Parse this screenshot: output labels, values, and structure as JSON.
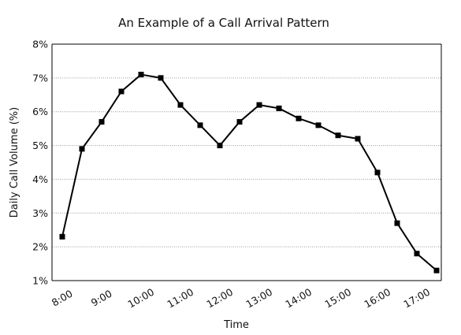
{
  "chart_data": {
    "type": "line",
    "title": "An Example of a Call Arrival Pattern",
    "xlabel": "Time",
    "ylabel": "Daily Call Volume (%)",
    "x_ticks": [
      "8:00",
      "9:00",
      "10:00",
      "11:00",
      "12:00",
      "13:00",
      "14:00",
      "15:00",
      "16:00",
      "17:00"
    ],
    "y_ticks": [
      "1%",
      "2%",
      "3%",
      "4%",
      "5%",
      "6%",
      "7%",
      "8%"
    ],
    "ylim": [
      1,
      8
    ],
    "grid": true,
    "series": [
      {
        "x": [
          "8:00",
          "8:30",
          "9:00",
          "9:30",
          "10:00",
          "10:30",
          "11:00",
          "11:30",
          "12:00",
          "12:30",
          "13:00",
          "13:30",
          "14:00",
          "14:30",
          "15:00",
          "15:30",
          "16:00",
          "16:30",
          "17:00",
          "17:30"
        ],
        "values": [
          2.3,
          4.9,
          5.7,
          6.6,
          7.1,
          7.0,
          6.2,
          5.6,
          5.0,
          5.7,
          6.2,
          6.1,
          5.8,
          5.6,
          5.3,
          5.2,
          4.2,
          2.7,
          1.8,
          1.3
        ],
        "color": "#000000"
      }
    ]
  }
}
